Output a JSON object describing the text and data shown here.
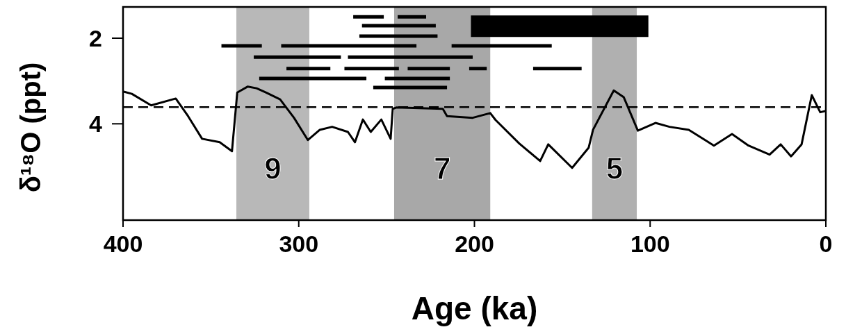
{
  "chart_data": {
    "type": "line",
    "xlabel": "Age (ka)",
    "ylabel": "δ¹⁸O (ppt)",
    "xlim": [
      400,
      0
    ],
    "xticks": [
      400,
      300,
      200,
      100,
      0
    ],
    "ylim": [
      6.25,
      1.27
    ],
    "yticks": [
      2,
      4
    ],
    "grid": false,
    "series": [
      {
        "color": "#000000",
        "x": [
          399.6,
          395,
          384,
          370,
          363,
          355,
          345,
          338,
          335,
          329,
          324,
          318.5,
          310.6,
          302.7,
          294.8,
          288,
          281,
          272,
          268,
          263.5,
          259,
          253,
          247.7,
          246.5,
          244.5,
          218,
          215.6,
          201,
          191,
          188,
          174.5,
          162.6,
          158,
          144.4,
          135,
          132.5,
          120.7,
          115,
          107,
          97,
          89,
          78,
          63.7,
          53.4,
          44,
          32,
          25.7,
          19.8,
          13.8,
          8,
          3.2,
          0
        ],
        "values": [
          3.25,
          3.3,
          3.57,
          3.41,
          3.82,
          4.35,
          4.43,
          4.64,
          3.27,
          3.13,
          3.17,
          3.27,
          3.43,
          3.86,
          4.38,
          4.14,
          4.07,
          4.19,
          4.43,
          3.9,
          4.19,
          3.9,
          4.35,
          3.65,
          3.62,
          3.65,
          3.82,
          3.86,
          3.75,
          3.91,
          4.46,
          4.87,
          4.48,
          5.03,
          4.56,
          4.14,
          3.22,
          3.38,
          4.16,
          3.98,
          4.07,
          4.14,
          4.51,
          4.24,
          4.51,
          4.72,
          4.48,
          4.76,
          4.48,
          3.33,
          3.73,
          3.7
        ]
      },
      {
        "type": "line",
        "color": "#000000",
        "x": [
          269,
          251.6,
          null,
          243.7,
          227.5,
          null,
          264,
          222,
          null,
          265.5,
          221,
          null,
          344,
          321,
          null,
          310,
          233,
          null,
          213,
          156,
          null,
          325.6,
          276,
          null,
          272,
          201,
          null,
          307,
          282,
          null,
          274,
          243,
          null,
          238,
          214,
          null,
          203,
          193,
          null,
          166.6,
          139,
          null,
          322.5,
          261.5,
          null,
          251,
          214,
          null,
          257.6,
          215.6
        ],
        "values": [
          1.5,
          1.5,
          null,
          1.5,
          1.5,
          null,
          1.71,
          1.71,
          null,
          1.95,
          1.95,
          null,
          2.18,
          2.18,
          null,
          2.18,
          2.18,
          null,
          2.18,
          2.18,
          null,
          2.44,
          2.44,
          null,
          2.44,
          2.44,
          null,
          2.71,
          2.71,
          null,
          2.71,
          2.71,
          null,
          2.71,
          2.71,
          null,
          2.71,
          2.71,
          null,
          2.71,
          2.71,
          null,
          2.94,
          2.94,
          null,
          2.94,
          2.94,
          null,
          3.15,
          3.15
        ]
      },
      {
        "type": "line",
        "color": "#000000",
        "x": [
          202,
          101
        ],
        "values": [
          1.72,
          1.72
        ]
      }
    ],
    "ref_lines": [
      {
        "axis": "y",
        "value": 3.61,
        "line_style": "dashed",
        "color": "#000000"
      }
    ],
    "bands": [
      {
        "axis": "x",
        "from": 335.5,
        "to": 294,
        "label": "9",
        "color": "#b8b8b8"
      },
      {
        "axis": "x",
        "from": 245.7,
        "to": 191,
        "label": "7",
        "color": "#a8a8a8"
      },
      {
        "axis": "x",
        "from": 133,
        "to": 107.6,
        "label": "5",
        "color": "#b0b0b0"
      }
    ]
  }
}
